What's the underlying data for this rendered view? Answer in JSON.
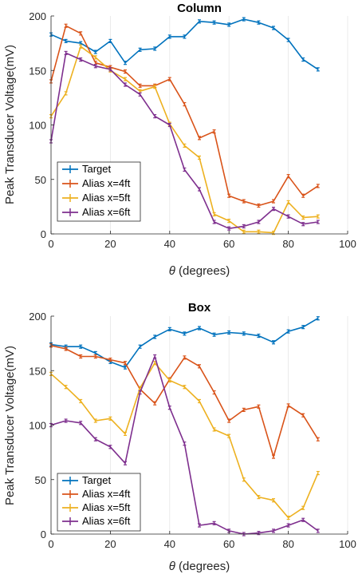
{
  "chart_data": [
    {
      "type": "line",
      "title": "Column",
      "xlabel_symbol": "θ",
      "xlabel_rest": " (degrees)",
      "ylabel": "Peak Transducer Voltage(mV)",
      "xlim": [
        0,
        100
      ],
      "ylim": [
        0,
        200
      ],
      "xticks": [
        0,
        20,
        40,
        60,
        80,
        100
      ],
      "yticks": [
        0,
        50,
        100,
        150,
        200
      ],
      "grid": true,
      "legend_position": "bottom-left",
      "x": [
        0,
        5,
        10,
        15,
        20,
        25,
        30,
        35,
        40,
        45,
        50,
        55,
        60,
        65,
        70,
        75,
        80,
        85,
        90
      ],
      "series": [
        {
          "name": "Target",
          "color": "#0072BD",
          "values": [
            183,
            177,
            175,
            167,
            177,
            157,
            169,
            170,
            181,
            181,
            195,
            194,
            192,
            197,
            194,
            189,
            178,
            160,
            151
          ]
        },
        {
          "name": "Alias x=4ft",
          "color": "#D95319",
          "values": [
            140,
            191,
            184,
            157,
            153,
            149,
            136,
            136,
            142,
            119,
            88,
            94,
            35,
            30,
            26,
            30,
            53,
            35,
            44
          ]
        },
        {
          "name": "Alias x=5ft",
          "color": "#EDB120",
          "values": [
            108,
            129,
            172,
            162,
            150,
            142,
            131,
            135,
            101,
            81,
            70,
            18,
            12,
            2,
            2,
            1,
            29,
            15,
            16
          ]
        },
        {
          "name": "Alias x=6ft",
          "color": "#7E2F8E",
          "values": [
            85,
            166,
            160,
            154,
            151,
            137,
            128,
            108,
            100,
            59,
            41,
            11,
            5,
            7,
            11,
            23,
            16,
            9,
            11
          ]
        }
      ]
    },
    {
      "type": "line",
      "title": "Box",
      "xlabel_symbol": "θ",
      "xlabel_rest": " (degrees)",
      "ylabel": "Peak Transducer Voltage(mV)",
      "xlim": [
        0,
        100
      ],
      "ylim": [
        0,
        200
      ],
      "xticks": [
        0,
        20,
        40,
        60,
        80,
        100
      ],
      "yticks": [
        0,
        50,
        100,
        150,
        200
      ],
      "grid": true,
      "legend_position": "bottom-left",
      "x": [
        0,
        5,
        10,
        15,
        20,
        25,
        30,
        35,
        40,
        45,
        50,
        55,
        60,
        65,
        70,
        75,
        80,
        85,
        90
      ],
      "series": [
        {
          "name": "Target",
          "color": "#0072BD",
          "values": [
            174,
            172,
            172,
            166,
            158,
            153,
            172,
            181,
            188,
            184,
            189,
            183,
            185,
            184,
            182,
            176,
            186,
            190,
            198
          ]
        },
        {
          "name": "Alias x=4ft",
          "color": "#D95319",
          "values": [
            173,
            170,
            163,
            163,
            160,
            157,
            133,
            120,
            142,
            162,
            154,
            130,
            104,
            114,
            117,
            71,
            118,
            109,
            87
          ]
        },
        {
          "name": "Alias x=5ft",
          "color": "#EDB120",
          "values": [
            147,
            135,
            122,
            104,
            106,
            92,
            134,
            157,
            141,
            135,
            122,
            96,
            90,
            50,
            34,
            31,
            15,
            24,
            56
          ]
        },
        {
          "name": "Alias x=6ft",
          "color": "#7E2F8E",
          "values": [
            100,
            104,
            102,
            87,
            80,
            65,
            130,
            163,
            116,
            83,
            8,
            10,
            3,
            0,
            1,
            3,
            8,
            13,
            3
          ]
        }
      ]
    }
  ]
}
